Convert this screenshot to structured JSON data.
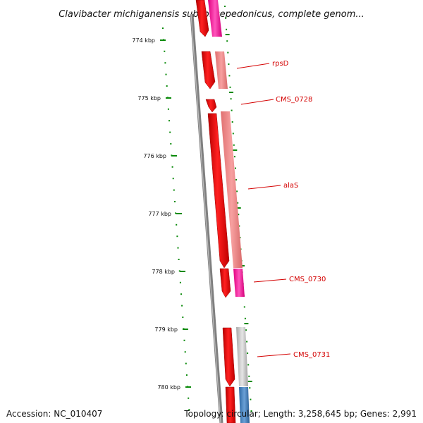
{
  "title": "Clavibacter michiganensis subsp. sepedonicus, complete genom...",
  "accession": "Accession: NC_010407",
  "summary": "Topology: circular; Length: 3,258,645 bp; Genes: 2,991",
  "ticks": [
    {
      "label": "774 kbp"
    },
    {
      "label": "775 kbp"
    },
    {
      "label": "776 kbp"
    },
    {
      "label": "777 kbp"
    },
    {
      "label": "778 kbp"
    },
    {
      "label": "779 kbp"
    },
    {
      "label": "780 kbp"
    }
  ],
  "genes": [
    {
      "name": "rpsD"
    },
    {
      "name": "CMS_0728"
    },
    {
      "name": "alaS"
    },
    {
      "name": "CMS_0730"
    },
    {
      "name": "CMS_0731"
    }
  ],
  "colors": {
    "cds": "#ff0000",
    "pink": "#ff33aa",
    "salmon": "#f08080",
    "gray": "#c8c8c8",
    "blue": "#3f7fbf",
    "ruler": "#7f7f7f",
    "tick": "#0a8a0a",
    "label": "#d40000"
  }
}
